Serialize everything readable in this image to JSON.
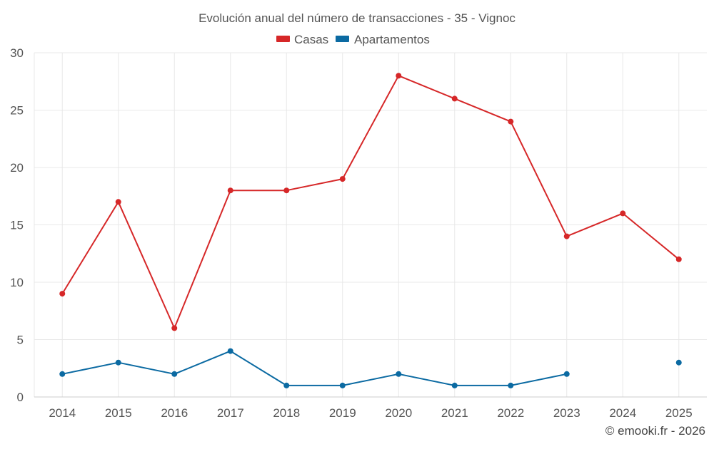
{
  "chart_data": {
    "type": "line",
    "title": "Evolución anual del número de transacciones - 35 - Vignoc",
    "categories": [
      "2014",
      "2015",
      "2016",
      "2017",
      "2018",
      "2019",
      "2020",
      "2021",
      "2022",
      "2023",
      "2024",
      "2025"
    ],
    "series": [
      {
        "name": "Casas",
        "color": "#d62728",
        "values": [
          9,
          17,
          6,
          18,
          18,
          19,
          28,
          26,
          24,
          14,
          16,
          12
        ]
      },
      {
        "name": "Apartamentos",
        "color": "#0b6aa2",
        "values": [
          2,
          3,
          2,
          4,
          1,
          1,
          2,
          1,
          1,
          2,
          null,
          3
        ]
      }
    ],
    "ylim": [
      0,
      30
    ],
    "yticks": [
      0,
      5,
      10,
      15,
      20,
      25,
      30
    ],
    "xlabel": "",
    "ylabel": "",
    "grid": true,
    "legend_position": "top-center"
  },
  "credit": "© emooki.fr - 2026"
}
